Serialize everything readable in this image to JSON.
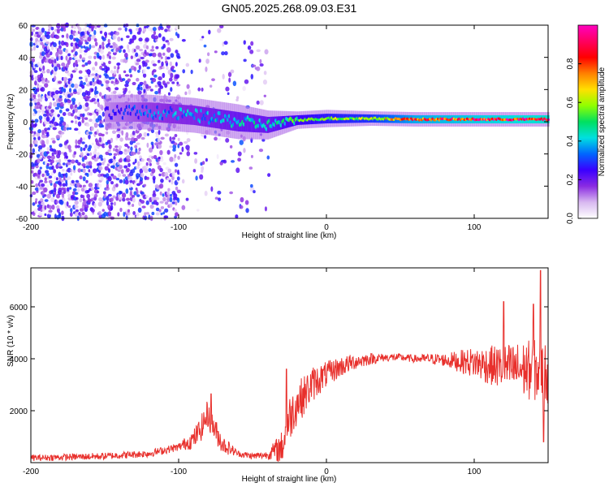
{
  "title": "GN05.2025.268.09.03.E31",
  "chart_data": [
    {
      "type": "heatmap",
      "xlabel": "Height of straight line (km)",
      "ylabel": "Frequency (Hz)",
      "xlim": [
        -200,
        150
      ],
      "ylim": [
        -60,
        60
      ],
      "xticks": [
        -200,
        -100,
        0,
        100
      ],
      "yticks": [
        -60,
        -40,
        -20,
        0,
        20,
        40,
        60
      ],
      "colorbar": {
        "label": "Normalized spectral amplitude",
        "range": [
          0.0,
          1.0
        ],
        "ticks": [
          0.0,
          0.2,
          0.4,
          0.6,
          0.8
        ],
        "tick_labels": [
          "0.0",
          "0.2",
          "0.4",
          "0.6",
          "0.8"
        ],
        "colormap": [
          "#ffffff",
          "#d8b8f0",
          "#8a2be2",
          "#3a00ff",
          "#0066ff",
          "#00e0e0",
          "#00e060",
          "#90ff00",
          "#ffe000",
          "#ff8000",
          "#ff0000",
          "#ff0060",
          "#ff00c0"
        ]
      },
      "ridge": [
        {
          "x": -150,
          "f_center": 6,
          "spread": 6,
          "amp": 0.25
        },
        {
          "x": -120,
          "f_center": 6,
          "spread": 6,
          "amp": 0.35
        },
        {
          "x": -90,
          "f_center": 4,
          "spread": 6,
          "amp": 0.4
        },
        {
          "x": -60,
          "f_center": 0,
          "spread": 6,
          "amp": 0.45
        },
        {
          "x": -40,
          "f_center": -2,
          "spread": 5,
          "amp": 0.45
        },
        {
          "x": -20,
          "f_center": 1,
          "spread": 3,
          "amp": 0.55
        },
        {
          "x": 0,
          "f_center": 2,
          "spread": 3,
          "amp": 0.6
        },
        {
          "x": 30,
          "f_center": 2,
          "spread": 2.5,
          "amp": 0.65
        },
        {
          "x": 60,
          "f_center": 1.5,
          "spread": 2.5,
          "amp": 0.85
        },
        {
          "x": 100,
          "f_center": 1.5,
          "spread": 2.5,
          "amp": 0.9
        },
        {
          "x": 150,
          "f_center": 1.5,
          "spread": 2.5,
          "amp": 0.95
        }
      ],
      "noise_region": {
        "x_range": [
          -200,
          -100
        ],
        "amp": 0.3
      }
    },
    {
      "type": "line",
      "xlabel": "Height of straight line (km)",
      "ylabel": "SNR (10 * v/v)",
      "xlim": [
        -200,
        150
      ],
      "ylim": [
        0,
        7500
      ],
      "xticks": [
        -200,
        -100,
        0,
        100
      ],
      "yticks": [
        2000,
        4000,
        6000
      ],
      "series": [
        {
          "name": "SNR",
          "color": "#e8302c",
          "envelope_x": [
            -200,
            -150,
            -120,
            -100,
            -90,
            -85,
            -80,
            -75,
            -70,
            -60,
            -50,
            -40,
            -30,
            -25,
            -20,
            -15,
            -10,
            0,
            10,
            20,
            30,
            40,
            50,
            60,
            70,
            80,
            90,
            100,
            110,
            120,
            130,
            140,
            145,
            150
          ],
          "envelope_y": [
            180,
            250,
            350,
            600,
            900,
            1300,
            1900,
            1200,
            700,
            350,
            250,
            300,
            600,
            1700,
            2300,
            2600,
            3000,
            3400,
            3700,
            3900,
            4000,
            4050,
            4050,
            4000,
            4000,
            3950,
            3900,
            3850,
            3750,
            3650,
            3600,
            3550,
            3500,
            3450
          ],
          "noise_amp_x": [
            -200,
            -100,
            -80,
            -60,
            -40,
            -25,
            -10,
            0,
            20,
            40,
            60,
            80,
            100,
            120,
            140,
            150
          ],
          "noise_amp_y": [
            120,
            150,
            600,
            120,
            150,
            900,
            700,
            500,
            300,
            150,
            150,
            250,
            600,
            900,
            1200,
            1200
          ],
          "peaks": [
            {
              "x": -78,
              "y": 2650
            },
            {
              "x": -27,
              "y": 3600
            },
            {
              "x": 145,
              "y": 7400
            },
            {
              "x": 140,
              "y": 6100
            },
            {
              "x": 120,
              "y": 6200
            },
            {
              "x": 147,
              "y": 800
            }
          ]
        }
      ]
    }
  ]
}
